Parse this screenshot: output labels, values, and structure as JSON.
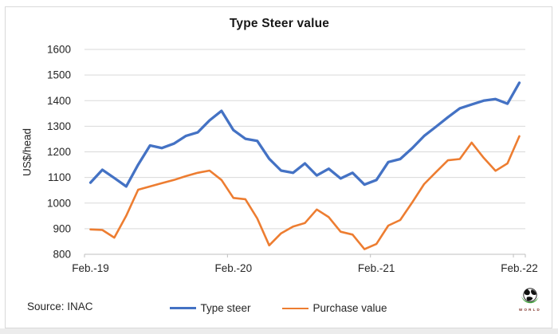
{
  "chart": {
    "title": "Type Steer value",
    "y_axis_title": "US$/head",
    "source_note": "Source: INAC",
    "logo_text": "WORLD",
    "colors": {
      "type_steer": "#4472C4",
      "purchase_value": "#ED7D31",
      "gridline": "#D9D9D9",
      "axis_line": "#BFBFBF",
      "text": "#262626"
    }
  },
  "chart_data": {
    "type": "line",
    "title": "Type Steer value",
    "ylabel": "US$/head",
    "ylim": [
      800,
      1600
    ],
    "y_tick_step": 100,
    "y_ticks": [
      1600,
      1500,
      1400,
      1300,
      1200,
      1100,
      1000,
      900,
      800
    ],
    "grid": true,
    "legend_position": "bottom",
    "x_tick_labels": [
      "Feb.-19",
      "Feb.-20",
      "Feb.-21",
      "Feb.-22"
    ],
    "x_tick_interval": 12,
    "x": [
      "Feb-19",
      "Mar-19",
      "Apr-19",
      "May-19",
      "Jun-19",
      "Jul-19",
      "Aug-19",
      "Sep-19",
      "Oct-19",
      "Nov-19",
      "Dec-19",
      "Jan-20",
      "Feb-20",
      "Mar-20",
      "Apr-20",
      "May-20",
      "Jun-20",
      "Jul-20",
      "Aug-20",
      "Sep-20",
      "Oct-20",
      "Nov-20",
      "Dec-20",
      "Jan-21",
      "Feb-21",
      "Mar-21",
      "Apr-21",
      "May-21",
      "Jun-21",
      "Jul-21",
      "Aug-21",
      "Sep-21",
      "Oct-21",
      "Nov-21",
      "Dec-21",
      "Jan-22",
      "Feb-22"
    ],
    "series": [
      {
        "name": "Type steer",
        "color": "#4472C4",
        "line_width": 3.3,
        "values": [
          1080,
          1130,
          1098,
          1065,
          1150,
          1225,
          1215,
          1232,
          1262,
          1276,
          1323,
          1360,
          1285,
          1251,
          1243,
          1173,
          1127,
          1118,
          1155,
          1108,
          1134,
          1096,
          1118,
          1072,
          1090,
          1160,
          1172,
          1214,
          1262,
          1298,
          1335,
          1370,
          1385,
          1400,
          1406,
          1388,
          1470
        ]
      },
      {
        "name": "Purchase value",
        "color": "#ED7D31",
        "line_width": 2.6,
        "values": [
          897,
          895,
          865,
          950,
          1052,
          1065,
          1078,
          1090,
          1105,
          1118,
          1127,
          1090,
          1020,
          1015,
          940,
          835,
          882,
          908,
          922,
          975,
          945,
          888,
          877,
          820,
          840,
          912,
          934,
          1002,
          1074,
          1121,
          1167,
          1172,
          1236,
          1177,
          1126,
          1155,
          1261
        ]
      }
    ]
  }
}
